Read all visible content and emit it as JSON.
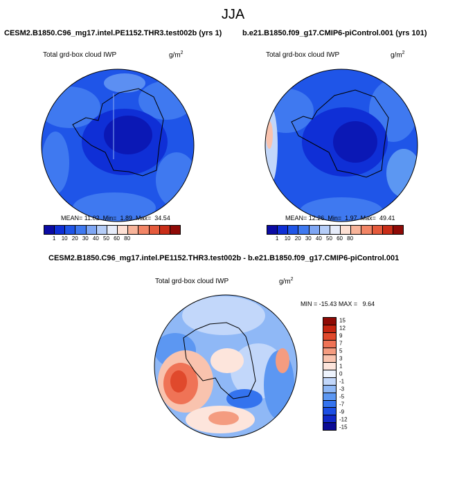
{
  "figure": {
    "title": "JJA",
    "variable_label": "Total grd-box cloud IWP",
    "units_base": "g/m",
    "units_exp": "2"
  },
  "colors": {
    "abs_scale": [
      "#0b0ba4",
      "#0f2fd6",
      "#1f55e8",
      "#3f79f0",
      "#7ea6f4",
      "#b5cdf8",
      "#e6ecfa",
      "#fde0d4",
      "#f8b49a",
      "#f28566",
      "#e55a3c",
      "#c92d18",
      "#8f0a07"
    ],
    "diff_scale": [
      "#0b0b95",
      "#1028c8",
      "#1c4ee4",
      "#3473ee",
      "#5c97f2",
      "#8fb8f6",
      "#c2d7fa",
      "#eef3fc",
      "#fde5dc",
      "#f9c3ae",
      "#f49c80",
      "#ef7356",
      "#e0492c",
      "#c52410",
      "#8e0a05"
    ]
  },
  "panels": [
    {
      "case_title": "CESM2.B1850.C96_mg17.intel.PE1152.THR3.test002b (yrs 1)",
      "stats": {
        "mean_label": "MEAN=",
        "mean": "11.02",
        "min_label": "Min=",
        "min": "1.89",
        "max_label": "Max=",
        "max": "34.54"
      },
      "colorbar_ticks": [
        "1",
        "10",
        "20",
        "30",
        "40",
        "50",
        "60",
        "80"
      ]
    },
    {
      "case_title": "b.e21.B1850.f09_g17.CMIP6-piControl.001 (yrs 101)",
      "stats": {
        "mean_label": "MEAN=",
        "mean": "12.26",
        "min_label": "Min=",
        "min": "1.97",
        "max_label": "Max=",
        "max": "49.41"
      },
      "colorbar_ticks": [
        "1",
        "10",
        "20",
        "30",
        "40",
        "50",
        "60",
        "80"
      ]
    }
  ],
  "difference": {
    "title": "CESM2.B1850.C96_mg17.intel.PE1152.THR3.test002b - b.e21.B1850.f09_g17.CMIP6-piControl.001",
    "min_label": "MIN =",
    "min": "-15.43",
    "max_label": "MAX =",
    "max": "9.64",
    "colorbar_ticks": [
      "-15",
      "-12",
      "-9",
      "-7",
      "-5",
      "-3",
      "-1",
      "0",
      "1",
      "3",
      "5",
      "7",
      "9",
      "12",
      "15"
    ]
  }
}
